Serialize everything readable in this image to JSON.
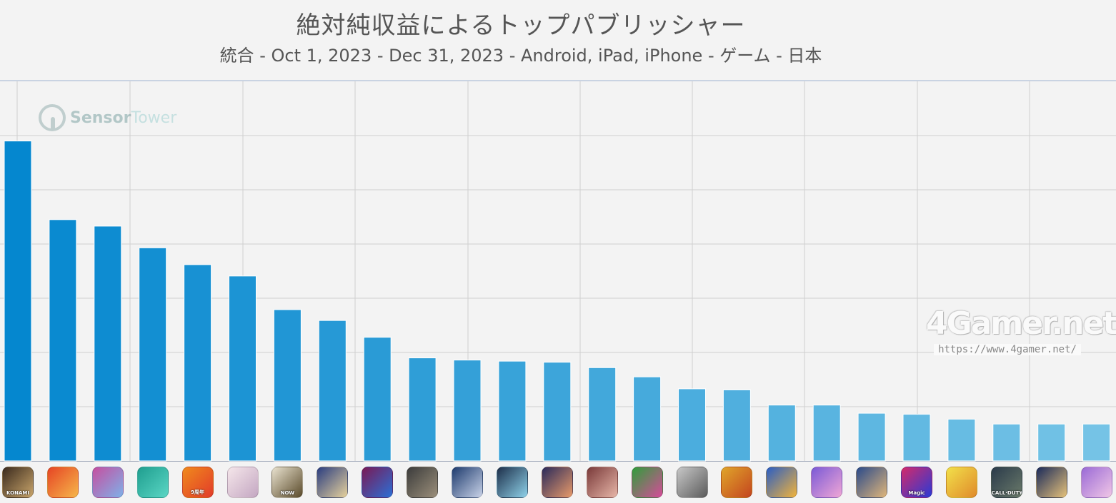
{
  "header": {
    "title": "絶対純収益によるトップパブリッシャー",
    "subtitle": "統合 - Oct 1, 2023 - Dec 31, 2023 - Android, iPad, iPhone - ゲーム - 日本"
  },
  "watermarks": {
    "sensor_tower_a": "Sensor",
    "sensor_tower_b": "Tower",
    "fourgamer_logo": "4Gamer.net",
    "fourgamer_url": "https://www.4gamer.net/"
  },
  "chart_data": {
    "type": "bar",
    "title": "絶対純収益によるトップパブリッシャー",
    "subtitle": "統合 - Oct 1, 2023 - Dec 31, 2023 - Android, iPad, iPhone - ゲーム - 日本",
    "xlabel": "",
    "ylabel": "",
    "grid": true,
    "legend": "none",
    "ylim": [
      0,
      7
    ],
    "values": [
      5.9,
      4.45,
      4.33,
      3.93,
      3.62,
      3.41,
      2.79,
      2.59,
      2.28,
      1.9,
      1.86,
      1.84,
      1.82,
      1.72,
      1.55,
      1.33,
      1.31,
      1.03,
      1.03,
      0.88,
      0.86,
      0.77,
      0.68,
      0.68,
      0.68
    ],
    "bar_colors": [
      "#0587cf",
      "#0a8ad0",
      "#0e8cd1",
      "#138fd2",
      "#1891d3",
      "#1c94d4",
      "#2196d5",
      "#2699d6",
      "#2a9bd6",
      "#2f9ed7",
      "#34a0d8",
      "#38a3d9",
      "#3da5da",
      "#42a8db",
      "#46aadc",
      "#4badde",
      "#50afde",
      "#54b2df",
      "#59b4e0",
      "#5eb7e1",
      "#62b9e2",
      "#67bce3",
      "#6cbee4",
      "#70c1e5",
      "#75c3e6"
    ],
    "categories_icons": [
      {
        "icon": "konami-icon",
        "tag": "KONAMI",
        "c1": "#3b2b1e",
        "c2": "#c9a56b"
      },
      {
        "icon": "red-monster-icon",
        "tag": "",
        "c1": "#e64524",
        "c2": "#f6b64a"
      },
      {
        "icon": "anime-girl-icon",
        "tag": "",
        "c1": "#c64fa0",
        "c2": "#7fb0e8"
      },
      {
        "icon": "green-slime-icon",
        "tag": "",
        "c1": "#1f9e8f",
        "c2": "#5ad6c4"
      },
      {
        "icon": "anniversary-icon",
        "tag": "9周年",
        "c1": "#f08a1c",
        "c2": "#e23b2a"
      },
      {
        "icon": "white-hair-girl-icon",
        "tag": "",
        "c1": "#f5e6ea",
        "c2": "#c4a7c2"
      },
      {
        "icon": "monster-hunter-now-icon",
        "tag": "NOW",
        "c1": "#e9e2cf",
        "c2": "#5a4a2a"
      },
      {
        "icon": "fate-go-icon",
        "tag": "",
        "c1": "#2a3d80",
        "c2": "#e7d29c"
      },
      {
        "icon": "dragon-icon",
        "tag": "",
        "c1": "#7a1a55",
        "c2": "#2b6fd6"
      },
      {
        "icon": "soldier-icon",
        "tag": "",
        "c1": "#3c3c3c",
        "c2": "#9b8f7a"
      },
      {
        "icon": "silver-hair-icon",
        "tag": "",
        "c1": "#1e3b6e",
        "c2": "#c9d3e8"
      },
      {
        "icon": "idol-icon",
        "tag": "",
        "c1": "#1d2f4a",
        "c2": "#8fd2ea"
      },
      {
        "icon": "heroine-icon",
        "tag": "",
        "c1": "#2a2a5a",
        "c2": "#e89a6a"
      },
      {
        "icon": "pink-hair-icon",
        "tag": "",
        "c1": "#7a3a3a",
        "c2": "#e7b6a8"
      },
      {
        "icon": "baseball-icon",
        "tag": "",
        "c1": "#2f9e3a",
        "c2": "#d74b9a"
      },
      {
        "icon": "robot-icon",
        "tag": "",
        "c1": "#c7c7c7",
        "c2": "#5b5b5b"
      },
      {
        "icon": "blonde-girl-icon",
        "tag": "",
        "c1": "#e0a52a",
        "c2": "#c4451f"
      },
      {
        "icon": "builder-icon",
        "tag": "",
        "c1": "#2a5ec4",
        "c2": "#f2b33a"
      },
      {
        "icon": "line-tsum-icon",
        "tag": "",
        "c1": "#7a5ad6",
        "c2": "#f0a6d6"
      },
      {
        "icon": "swordsman-icon",
        "tag": "",
        "c1": "#2a4a8a",
        "c2": "#e0b67a"
      },
      {
        "icon": "magic-icon",
        "tag": "Magic",
        "c1": "#d42a6a",
        "c2": "#2a3ad6"
      },
      {
        "icon": "seven-deadly-icon",
        "tag": "",
        "c1": "#f2e04a",
        "c2": "#e08a2a"
      },
      {
        "icon": "call-of-duty-icon",
        "tag": "CALL·DUTY",
        "c1": "#2a3a4a",
        "c2": "#6a7a6a"
      },
      {
        "icon": "blue-hair-boy-icon",
        "tag": "",
        "c1": "#1a2a5a",
        "c2": "#e6c27a"
      },
      {
        "icon": "line-tsum-icon-2",
        "tag": "",
        "c1": "#9a6ad6",
        "c2": "#f0c6e6"
      }
    ]
  }
}
